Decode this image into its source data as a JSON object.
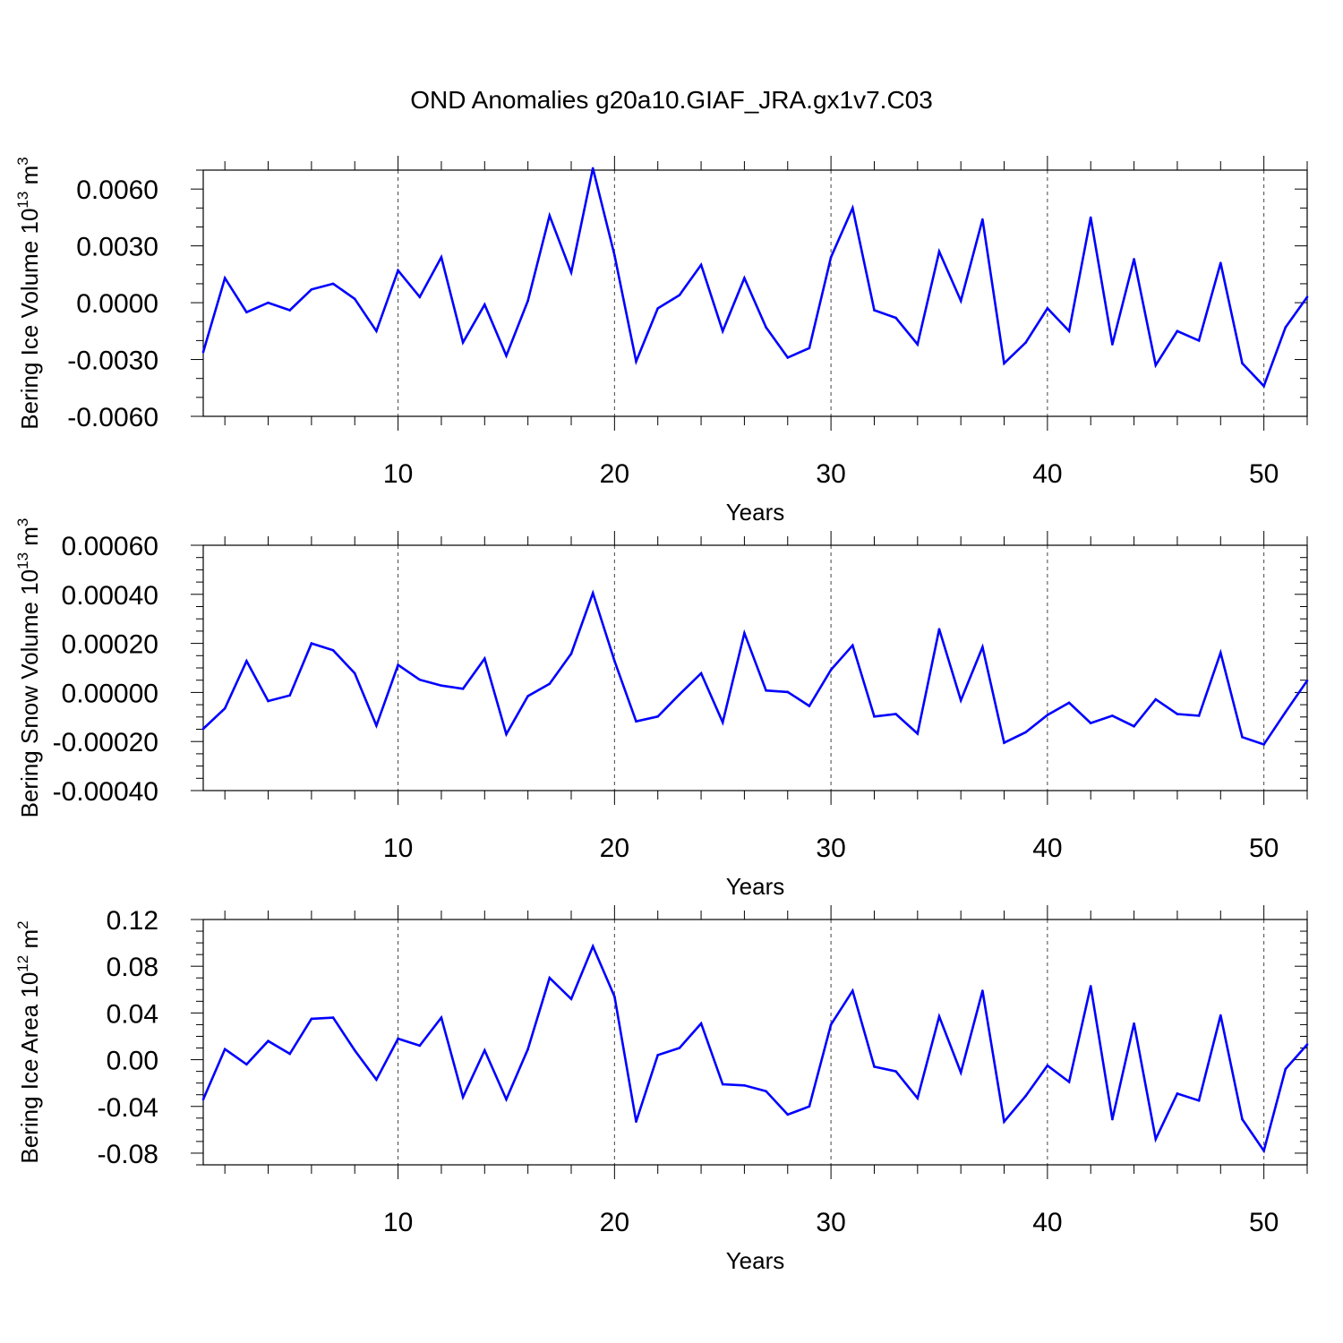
{
  "title": "OND Anomalies g20a10.GIAF_JRA.gx1v7.C03",
  "colors": {
    "line": "#0000ff",
    "axis": "#000000",
    "grid": "#444444"
  },
  "chart_data": [
    {
      "type": "line",
      "panel": "ice-volume",
      "ylabel": {
        "main": "Bering Ice Volume 10",
        "sup": "13",
        "mid": " m",
        "sup2": "3"
      },
      "xlabel": "Years",
      "xlim": [
        1,
        52
      ],
      "ylim": [
        -0.006,
        0.007
      ],
      "xticks": [
        10,
        20,
        30,
        40,
        50
      ],
      "xtick_labels": [
        "10",
        "20",
        "30",
        "40",
        "50"
      ],
      "yticks": [
        -0.006,
        -0.003,
        0.0,
        0.003,
        0.006
      ],
      "ytick_labels": [
        "-0.0060",
        "-0.0030",
        "0.0000",
        "0.0030",
        "0.0060"
      ],
      "yminor": 0.001,
      "x": [
        1,
        2,
        3,
        4,
        5,
        6,
        7,
        8,
        9,
        10,
        11,
        12,
        13,
        14,
        15,
        16,
        17,
        18,
        19,
        20,
        21,
        22,
        23,
        24,
        25,
        26,
        27,
        28,
        29,
        30,
        31,
        32,
        33,
        34,
        35,
        36,
        37,
        38,
        39,
        40,
        41,
        42,
        43,
        44,
        45,
        46,
        47,
        48,
        49,
        50,
        51,
        52
      ],
      "values": [
        -0.0026,
        0.0013,
        -0.0005,
        0.0,
        -0.0004,
        0.0007,
        0.001,
        0.0002,
        -0.0015,
        0.0017,
        0.0003,
        0.0024,
        -0.0021,
        -0.0001,
        -0.0028,
        0.0001,
        0.0046,
        0.0016,
        0.0071,
        0.0025,
        -0.0031,
        -0.0003,
        0.0004,
        0.002,
        -0.0015,
        0.0013,
        -0.0013,
        -0.0029,
        -0.0024,
        0.0024,
        0.005,
        -0.0004,
        -0.0008,
        -0.0022,
        0.0027,
        0.0001,
        0.0044,
        -0.0032,
        -0.0021,
        -0.0003,
        -0.0015,
        0.0045,
        -0.0022,
        0.0023,
        -0.0033,
        -0.0015,
        -0.002,
        0.0021,
        -0.0032,
        -0.0044,
        -0.0013,
        0.0003
      ]
    },
    {
      "type": "line",
      "panel": "snow-volume",
      "ylabel": {
        "main": "Bering Snow Volume 10",
        "sup": "13",
        "mid": " m",
        "sup2": "3"
      },
      "xlabel": "Years",
      "xlim": [
        1,
        52
      ],
      "ylim": [
        -0.0004,
        0.0006
      ],
      "xticks": [
        10,
        20,
        30,
        40,
        50
      ],
      "xtick_labels": [
        "10",
        "20",
        "30",
        "40",
        "50"
      ],
      "yticks": [
        -0.0004,
        -0.0002,
        0.0,
        0.0002,
        0.0004,
        0.0006
      ],
      "ytick_labels": [
        "-0.00040",
        "-0.00020",
        "0.00000",
        "0.00020",
        "0.00040",
        "0.00060"
      ],
      "yminor": 5e-05,
      "x": [
        1,
        2,
        3,
        4,
        5,
        6,
        7,
        8,
        9,
        10,
        11,
        12,
        13,
        14,
        15,
        16,
        17,
        18,
        19,
        20,
        21,
        22,
        23,
        24,
        25,
        26,
        27,
        28,
        29,
        30,
        31,
        32,
        33,
        34,
        35,
        36,
        37,
        38,
        39,
        40,
        41,
        42,
        43,
        44,
        45,
        46,
        47,
        48,
        49,
        50,
        51,
        52
      ],
      "values": [
        -0.000148,
        -6.5e-05,
        0.000128,
        -3.5e-05,
        -1.2e-05,
        0.0002,
        0.000172,
        7.8e-05,
        -0.000135,
        0.000112,
        5.2e-05,
        2.8e-05,
        1.5e-05,
        0.000138,
        -0.00017,
        -1.5e-05,
        3.5e-05,
        0.000158,
        0.000405,
        0.000128,
        -0.000118,
        -9.8e-05,
        -8e-06,
        7.8e-05,
        -0.000122,
        0.000242,
        8e-06,
        2e-06,
        -5.5e-05,
        9.2e-05,
        0.000192,
        -9.8e-05,
        -8.8e-05,
        -0.000168,
        0.000258,
        -3.2e-05,
        0.000185,
        -0.000205,
        -0.000162,
        -9.2e-05,
        -4.2e-05,
        -0.000125,
        -9.5e-05,
        -0.000138,
        -2.8e-05,
        -8.8e-05,
        -9.5e-05,
        0.000162,
        -0.000182,
        -0.000212,
        -8e-05,
        4.8e-05
      ]
    },
    {
      "type": "line",
      "panel": "ice-area",
      "ylabel": {
        "main": "Bering Ice Area 10",
        "sup": "12",
        "mid": " m",
        "sup2": "2"
      },
      "xlabel": "Years",
      "xlim": [
        1,
        52
      ],
      "ylim": [
        -0.09,
        0.12
      ],
      "xticks": [
        10,
        20,
        30,
        40,
        50
      ],
      "xtick_labels": [
        "10",
        "20",
        "30",
        "40",
        "50"
      ],
      "yticks": [
        -0.08,
        -0.04,
        0.0,
        0.04,
        0.08,
        0.12
      ],
      "ytick_labels": [
        "-0.08",
        "-0.04",
        "0.00",
        "0.04",
        "0.08",
        "0.12"
      ],
      "yminor": 0.01,
      "x": [
        1,
        2,
        3,
        4,
        5,
        6,
        7,
        8,
        9,
        10,
        11,
        12,
        13,
        14,
        15,
        16,
        17,
        18,
        19,
        20,
        21,
        22,
        23,
        24,
        25,
        26,
        27,
        28,
        29,
        30,
        31,
        32,
        33,
        34,
        35,
        36,
        37,
        38,
        39,
        40,
        41,
        42,
        43,
        44,
        45,
        46,
        47,
        48,
        49,
        50,
        51,
        52
      ],
      "values": [
        -0.034,
        0.009,
        -0.004,
        0.016,
        0.005,
        0.035,
        0.036,
        0.008,
        -0.017,
        0.018,
        0.012,
        0.036,
        -0.032,
        0.008,
        -0.034,
        0.009,
        0.07,
        0.052,
        0.097,
        0.054,
        -0.053,
        0.004,
        0.01,
        0.031,
        -0.021,
        -0.022,
        -0.027,
        -0.047,
        -0.04,
        0.03,
        0.059,
        -0.006,
        -0.01,
        -0.033,
        0.037,
        -0.011,
        0.059,
        -0.053,
        -0.031,
        -0.005,
        -0.019,
        0.063,
        -0.051,
        0.031,
        -0.068,
        -0.029,
        -0.035,
        0.038,
        -0.051,
        -0.078,
        -0.008,
        0.013
      ]
    }
  ]
}
